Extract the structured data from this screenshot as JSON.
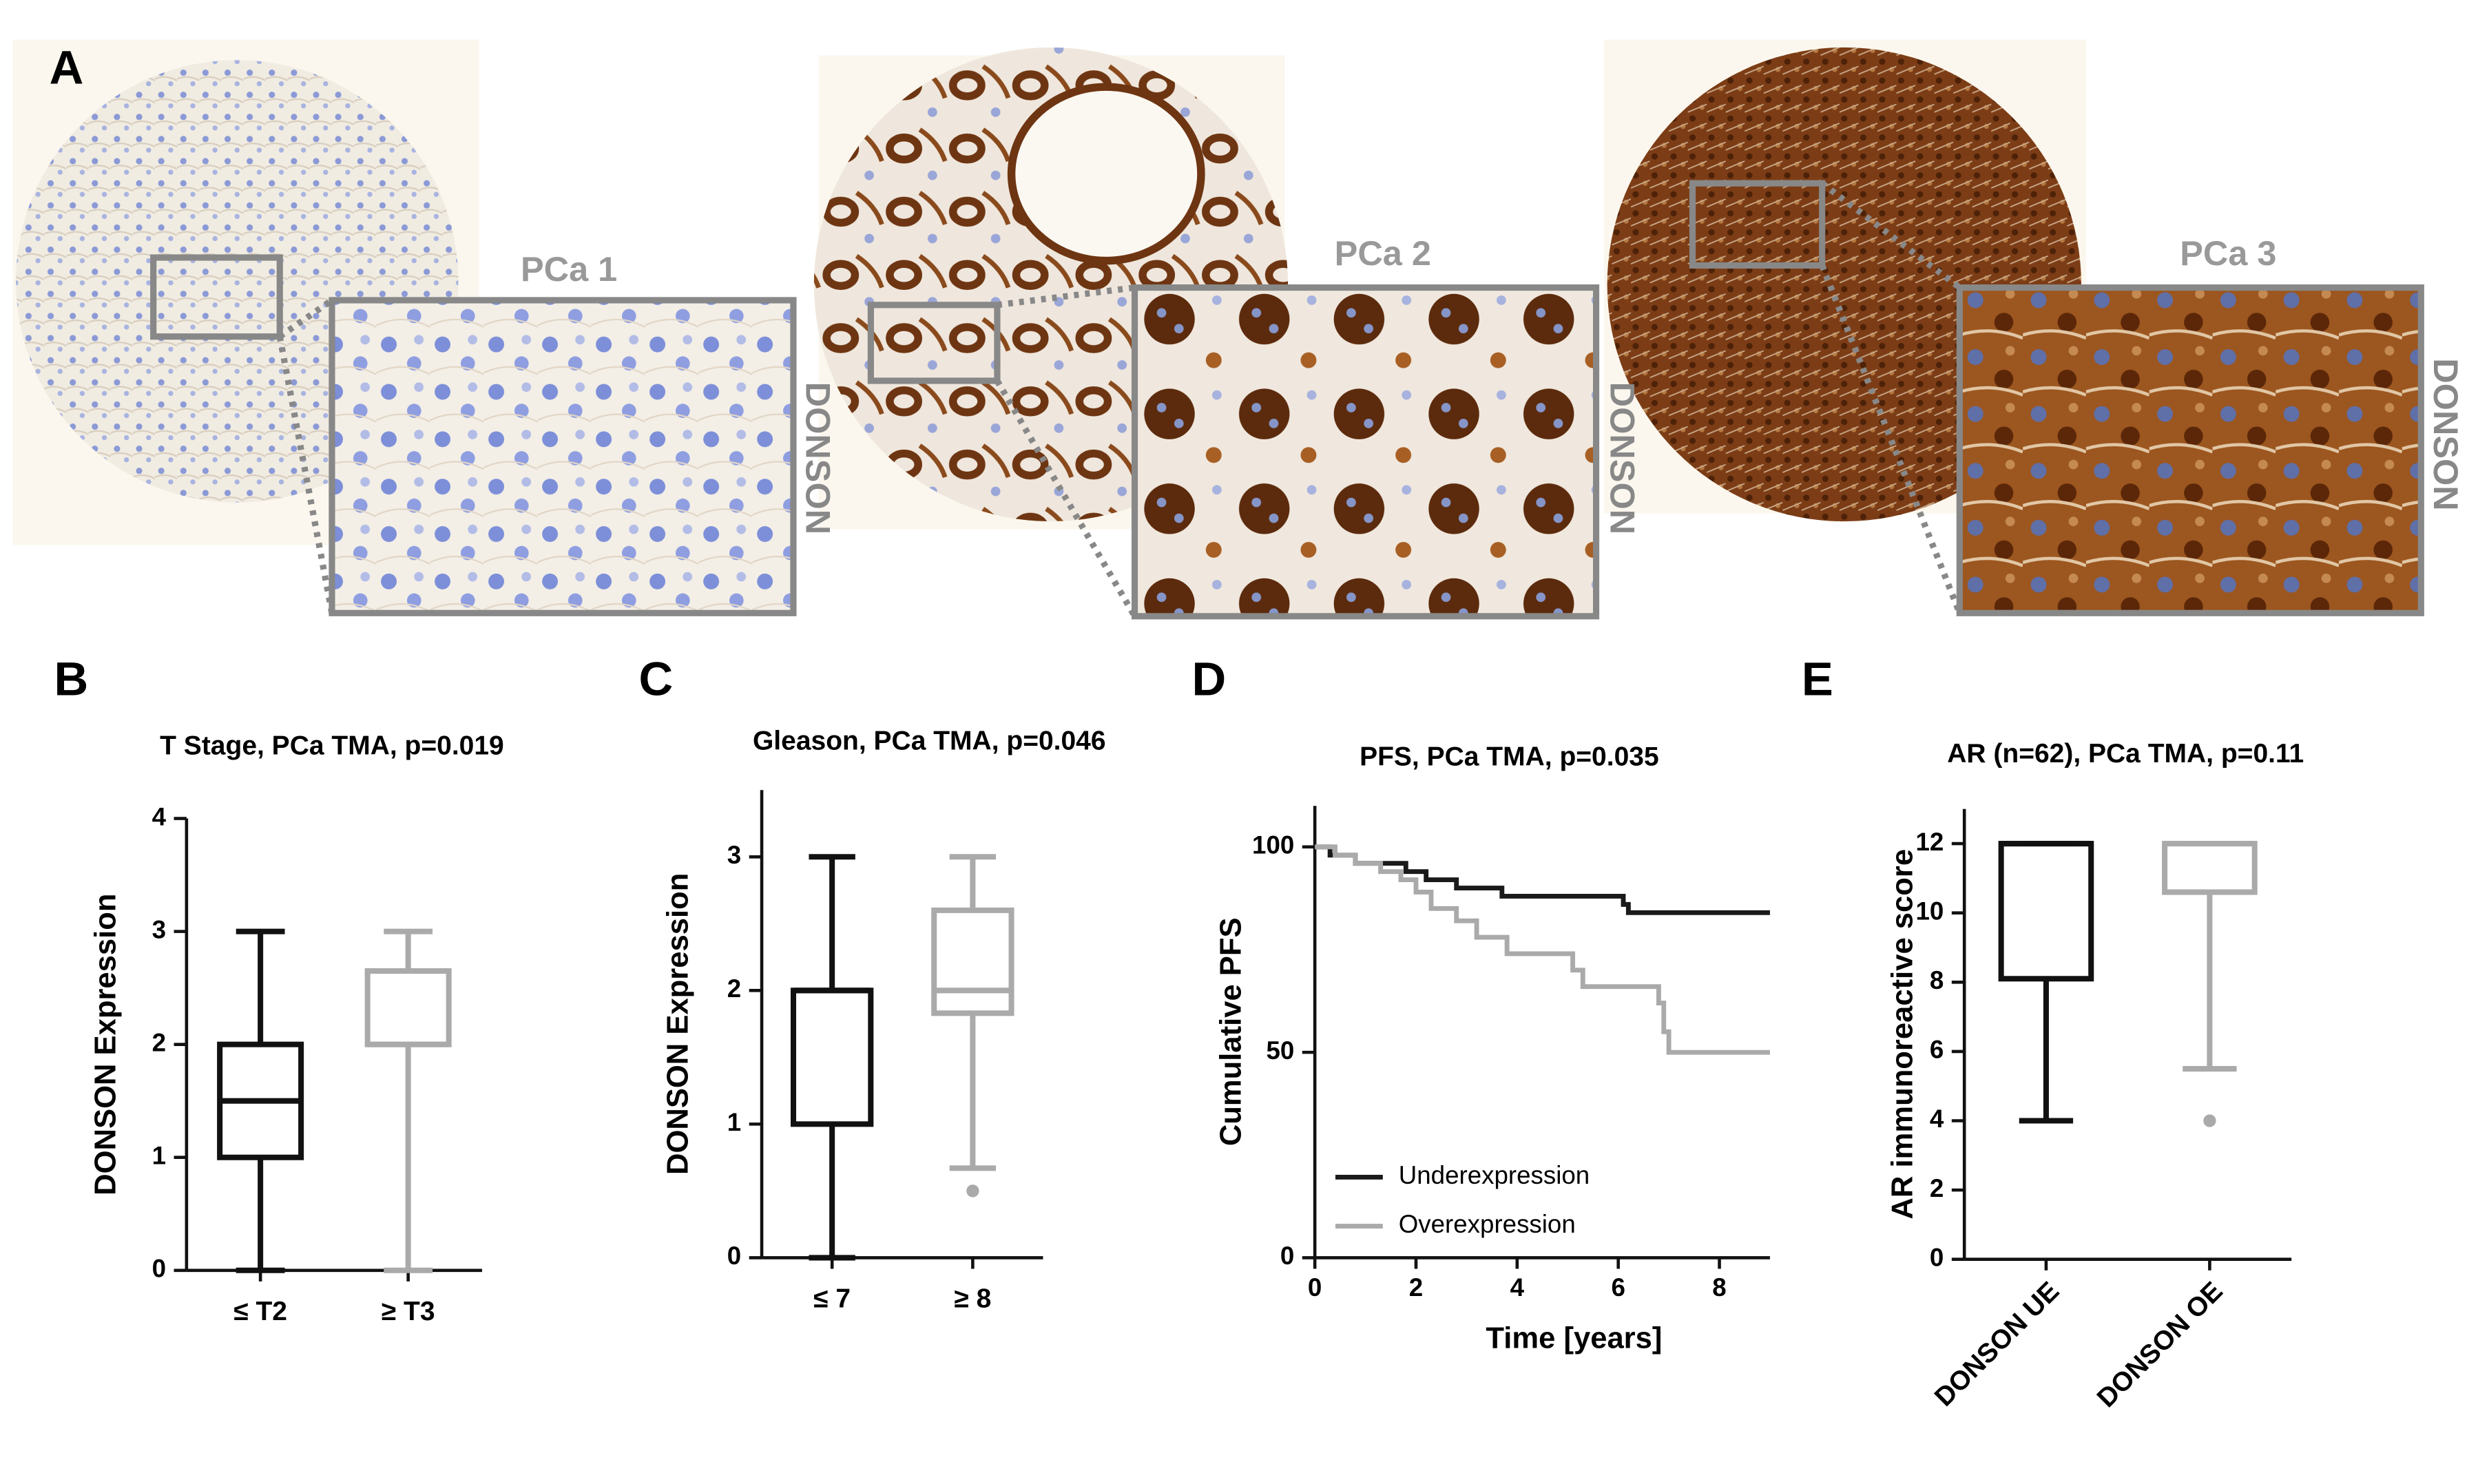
{
  "panel_a": {
    "label": "A",
    "cores": [
      {
        "title": "PCa 1",
        "stain": "DONSON"
      },
      {
        "title": "PCa 2",
        "stain": "DONSON"
      },
      {
        "title": "PCa 3",
        "stain": "DONSON"
      }
    ]
  },
  "chart_data": [
    {
      "type": "box",
      "label": "B",
      "title": "T Stage, PCa TMA, p=0.019",
      "y_label": "DONSON Expression",
      "categories": [
        "≤ T2",
        "≥ T3"
      ],
      "boxes": [
        {
          "min": 0,
          "q1": 1,
          "median": 1.5,
          "q3": 2,
          "max": 3,
          "outliers": [],
          "color": "#111111"
        },
        {
          "min": 0,
          "q1": 2,
          "median": 2,
          "q3": 2.65,
          "max": 3,
          "outliers": [],
          "color": "#aaaaaa"
        }
      ],
      "ylim": [
        0,
        4
      ],
      "yticks": [
        0,
        1,
        2,
        3,
        4
      ]
    },
    {
      "type": "box",
      "label": "C",
      "title": "Gleason, PCa TMA, p=0.046",
      "y_label": "DONSON Expression",
      "categories": [
        "≤ 7",
        "≥ 8"
      ],
      "boxes": [
        {
          "min": 0,
          "q1": 1,
          "median": 2,
          "q3": 2,
          "max": 3,
          "outliers": [],
          "color": "#111111"
        },
        {
          "min": 0.67,
          "q1": 1.83,
          "median": 2,
          "q3": 2.6,
          "max": 3,
          "outliers": [
            0.5
          ],
          "color": "#aaaaaa"
        }
      ],
      "ylim": [
        0,
        3.5
      ],
      "yticks": [
        0,
        1,
        2,
        3
      ]
    },
    {
      "type": "line",
      "step": true,
      "label": "D",
      "title": "PFS, PCa TMA, p=0.035",
      "x_label": "Time [years]",
      "y_label": "Cumulative PFS",
      "legend": "lower left",
      "series": [
        {
          "name": "Underexpression",
          "color": "#1a1a1a",
          "x": [
            0,
            0.3,
            0.8,
            1.8,
            2.2,
            2.8,
            3.7,
            6.1,
            6.2,
            9
          ],
          "values": [
            100,
            98,
            96,
            94,
            92,
            90,
            88,
            86,
            84,
            84
          ]
        },
        {
          "name": "Overexpression",
          "color": "#aaaaaa",
          "x": [
            0,
            0.4,
            0.8,
            1.3,
            1.7,
            2,
            2.3,
            2.8,
            3.2,
            3.8,
            5.1,
            5.3,
            6.8,
            6.9,
            7,
            9
          ],
          "values": [
            100,
            98,
            96,
            94,
            92,
            89,
            85,
            82,
            78,
            74,
            70,
            66,
            62,
            55,
            50,
            50
          ]
        }
      ],
      "xlim": [
        0,
        9
      ],
      "xticks": [
        0,
        2,
        4,
        6,
        8
      ],
      "ylim": [
        0,
        110
      ],
      "yticks": [
        0,
        50,
        100
      ]
    },
    {
      "type": "box",
      "label": "E",
      "title": "AR (n=62), PCa TMA, p=0.11",
      "y_label": "AR immunoreactive score",
      "categories": [
        "DONSON UE",
        "DONSON OE"
      ],
      "rotate_categories": true,
      "boxes": [
        {
          "min": 4,
          "q1": 8.1,
          "median": 12,
          "q3": 12,
          "max": 12,
          "outliers": [],
          "color": "#111111"
        },
        {
          "min": 5.5,
          "q1": 10.6,
          "median": 12,
          "q3": 12,
          "max": 12,
          "outliers": [
            4
          ],
          "color": "#aaaaaa"
        }
      ],
      "ylim": [
        0,
        13
      ],
      "yticks": [
        0,
        2,
        4,
        6,
        8,
        10,
        12
      ]
    }
  ]
}
